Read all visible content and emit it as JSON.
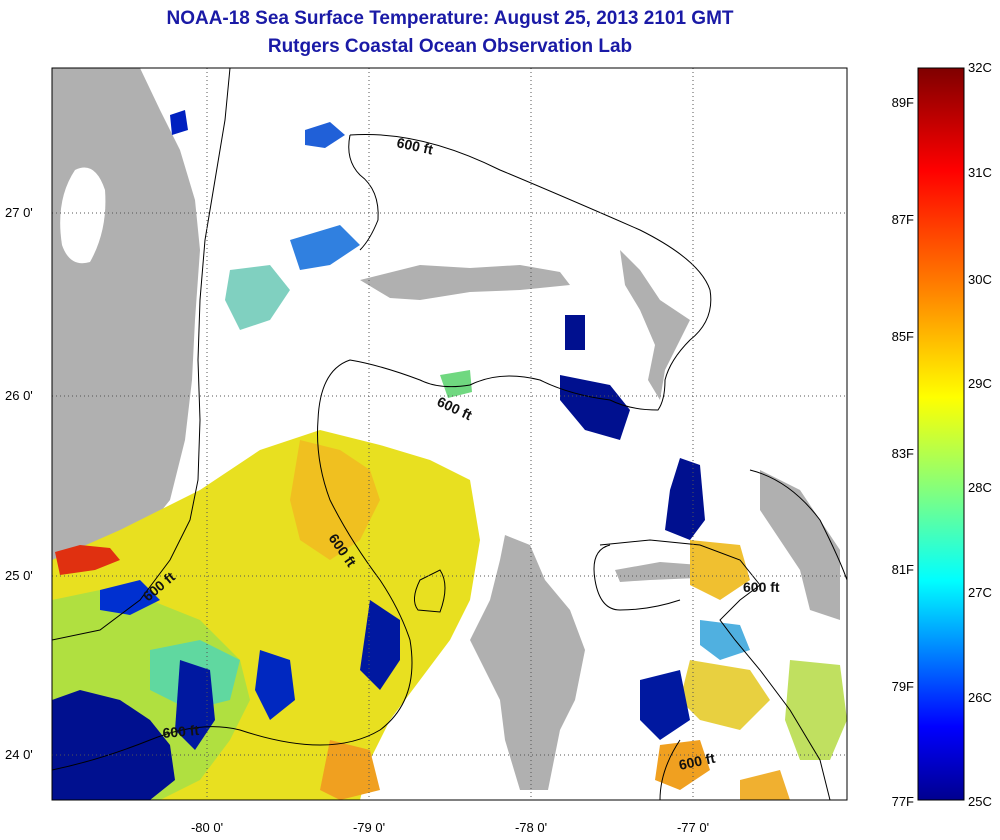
{
  "title": {
    "line1": "NOAA-18 Sea Surface Temperature:  August 25, 2013 2101 GMT",
    "line2": "Rutgers Coastal Ocean Observation Lab"
  },
  "map": {
    "lon_ticks": [
      "-80 0'",
      "-79 0'",
      "-78 0'",
      "-77 0'"
    ],
    "lat_ticks": [
      "27 0'",
      "26 0'",
      "25 0'",
      "24 0'"
    ],
    "contour_label": "600 ft",
    "land_color": "#b0b0b0",
    "missing_color": "#ffffff"
  },
  "colorbar": {
    "celsius": [
      "32C",
      "31C",
      "30C",
      "29C",
      "28C",
      "27C",
      "26C",
      "25C"
    ],
    "fahrenheit": [
      "89F",
      "87F",
      "85F",
      "83F",
      "81F",
      "79F",
      "77F"
    ],
    "stops": [
      "#7f0000",
      "#ff0000",
      "#ff8000",
      "#ffff00",
      "#80ff80",
      "#00ffff",
      "#0080ff",
      "#0000ff",
      "#00008f"
    ]
  }
}
